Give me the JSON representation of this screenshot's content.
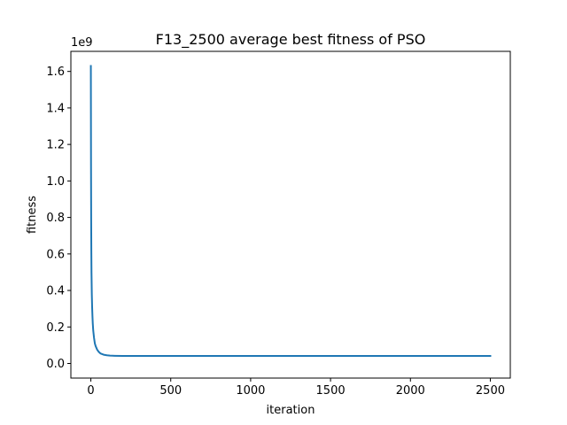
{
  "chart_data": {
    "type": "line",
    "title": "F13_2500 average best fitness of PSO",
    "xlabel": "iteration",
    "ylabel": "fitness",
    "y_offset_text": "1e9",
    "xlim": [
      -125,
      2625
    ],
    "ylim": [
      -0.08,
      1.71
    ],
    "x_ticks": [
      0,
      500,
      1000,
      1500,
      2000,
      2500
    ],
    "x_tick_labels": [
      "0",
      "500",
      "1000",
      "1500",
      "2000",
      "2500"
    ],
    "y_ticks": [
      0.0,
      0.2,
      0.4,
      0.6,
      0.8,
      1.0,
      1.2,
      1.4,
      1.6
    ],
    "y_tick_labels": [
      "0.0",
      "0.2",
      "0.4",
      "0.6",
      "0.8",
      "1.0",
      "1.2",
      "1.4",
      "1.6"
    ],
    "grid": false,
    "legend": "none",
    "series": [
      {
        "color": "#1f77b4",
        "x": [
          0,
          1,
          2,
          3,
          4,
          6,
          8,
          10,
          12,
          15,
          20,
          25,
          30,
          40,
          50,
          60,
          80,
          100,
          120,
          150,
          200,
          300,
          500,
          1000,
          1500,
          2000,
          2500
        ],
        "y": [
          1.63,
          1.1,
          0.8,
          0.62,
          0.5,
          0.38,
          0.31,
          0.26,
          0.22,
          0.18,
          0.14,
          0.11,
          0.095,
          0.075,
          0.063,
          0.055,
          0.048,
          0.045,
          0.043,
          0.042,
          0.041,
          0.041,
          0.041,
          0.041,
          0.041,
          0.041,
          0.041
        ]
      }
    ]
  }
}
